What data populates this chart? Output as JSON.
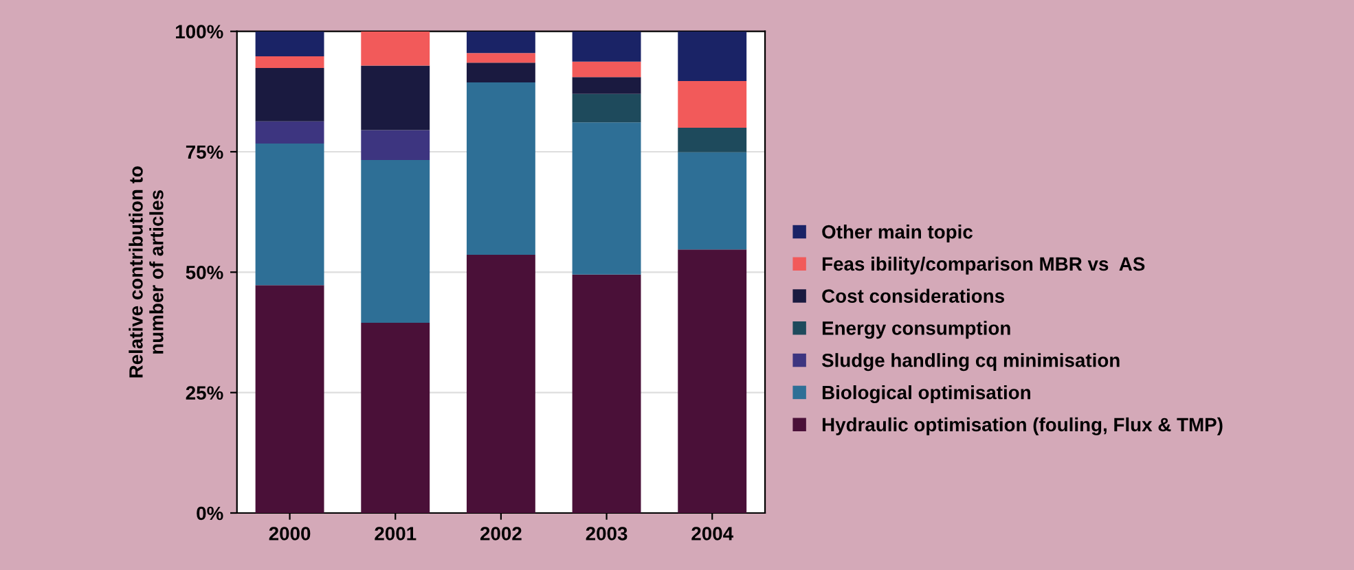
{
  "chart_data": {
    "type": "bar",
    "stacked": true,
    "ylabel": "Relative contribution to\nnumber of articles",
    "categories": [
      "2000",
      "2001",
      "2002",
      "2003",
      "2004"
    ],
    "series": [
      {
        "name": "Hydraulic optimisation (fouling, Flux & TMP)",
        "color": "#4a1038",
        "values": [
          47.3,
          39.5,
          53.6,
          49.5,
          54.7
        ]
      },
      {
        "name": "Biological optimisation",
        "color": "#2e6f96",
        "values": [
          29.4,
          33.8,
          35.8,
          31.6,
          20.2
        ]
      },
      {
        "name": "Sludge handling cq minimisation",
        "color": "#3d3580",
        "values": [
          4.6,
          6.2,
          0,
          0,
          0
        ]
      },
      {
        "name": "Energy consumption",
        "color": "#1e4a5c",
        "values": [
          0,
          0,
          0,
          5.9,
          5.1
        ]
      },
      {
        "name": "Cost considerations",
        "color": "#1a1a40",
        "values": [
          11.1,
          13.4,
          4.1,
          3.5,
          0
        ]
      },
      {
        "name": "Feas ibility/comparison MBR vs  AS",
        "color": "#f25a5a",
        "values": [
          2.4,
          7.1,
          2.0,
          3.2,
          9.7
        ]
      },
      {
        "name": "Other main topic",
        "color": "#1a2366",
        "values": [
          5.2,
          0,
          4.5,
          6.3,
          10.3
        ]
      }
    ],
    "ylim": [
      0,
      100
    ],
    "yticks": [
      {
        "value": 0,
        "label": "0%"
      },
      {
        "value": 25,
        "label": "25%"
      },
      {
        "value": 50,
        "label": "50%"
      },
      {
        "value": 75,
        "label": "75%"
      },
      {
        "value": 100,
        "label": "100%"
      }
    ],
    "grid": "y",
    "legend": "right"
  }
}
